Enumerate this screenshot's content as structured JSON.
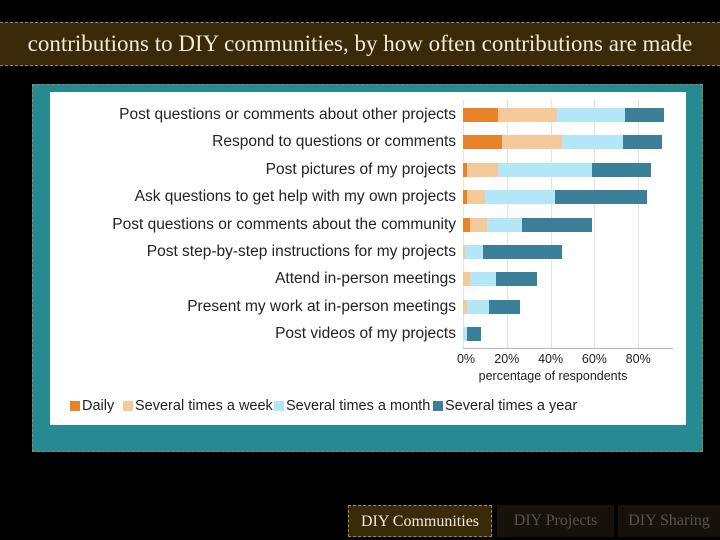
{
  "header": {
    "title": "contributions to DIY communities, by how often contributions are made"
  },
  "nav": {
    "tabs": [
      {
        "label": "DIY Communities",
        "active": true
      },
      {
        "label": "DIY Projects",
        "active": false
      },
      {
        "label": "DIY Sharing",
        "active": false
      }
    ]
  },
  "colors": {
    "daily": "#e8832a",
    "week": "#f5c99a",
    "month": "#b3e6f7",
    "year": "#3c7f98",
    "frame": "#278a93",
    "title_bg": "#3a2a0a"
  },
  "chart_data": {
    "type": "bar",
    "orientation": "horizontal",
    "stacked": true,
    "title": "",
    "xlabel": "percentage of respondents",
    "ylabel": "",
    "xlim": [
      0,
      95
    ],
    "x_ticks": [
      "0%",
      "20%",
      "40%",
      "60%",
      "80%"
    ],
    "grid": true,
    "legend_position": "bottom",
    "categories": [
      "Post questions or comments about other projects",
      "Respond to questions or comments",
      "Post pictures of my projects",
      "Ask questions to get help with my own projects",
      "Post questions or comments about the community",
      "Post step-by-step instructions for my projects",
      "Attend in-person meetings",
      "Present my work at in-person meetings",
      "Post videos of my projects"
    ],
    "series": [
      {
        "name": "Daily",
        "values": [
          16,
          18,
          2,
          2,
          3,
          0,
          0,
          0,
          0
        ]
      },
      {
        "name": "Several times a week",
        "values": [
          27,
          27,
          14,
          8,
          8,
          1,
          3,
          2,
          0
        ]
      },
      {
        "name": "Several times a month",
        "values": [
          31,
          28,
          43,
          32,
          16,
          8,
          12,
          10,
          2
        ]
      },
      {
        "name": "Several times a year",
        "values": [
          18,
          18,
          27,
          42,
          32,
          36,
          19,
          14,
          6
        ]
      }
    ]
  },
  "legend": {
    "daily": "Daily",
    "week": "Several times a week",
    "month": "Several times a month",
    "year": "Several times a year"
  }
}
